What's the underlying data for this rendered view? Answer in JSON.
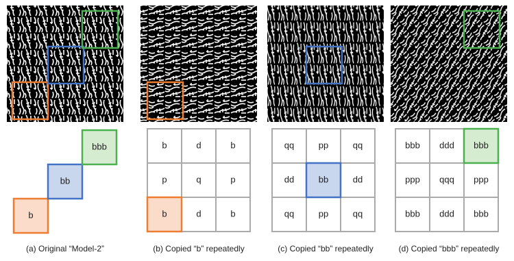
{
  "panels": [
    {
      "caption": "(a)  Original “Model-2”",
      "cells": [
        "b",
        "bb",
        "bbb"
      ]
    },
    {
      "caption": "(b) Copied “b” repeatedly",
      "grid": [
        [
          "b",
          "d",
          "b"
        ],
        [
          "p",
          "q",
          "p"
        ],
        [
          "b",
          "d",
          "b"
        ]
      ]
    },
    {
      "caption": "(c) Copied “bb” repeatedly",
      "grid": [
        [
          "qq",
          "pp",
          "qq"
        ],
        [
          "dd",
          "bb",
          "dd"
        ],
        [
          "qq",
          "pp",
          "qq"
        ]
      ]
    },
    {
      "caption": "(d) Copied “bbb” repeatedly",
      "grid": [
        [
          "bbb",
          "ddd",
          "bbb"
        ],
        [
          "ppp",
          "qqq",
          "ppp"
        ],
        [
          "bbb",
          "ddd",
          "bbb"
        ]
      ]
    }
  ]
}
